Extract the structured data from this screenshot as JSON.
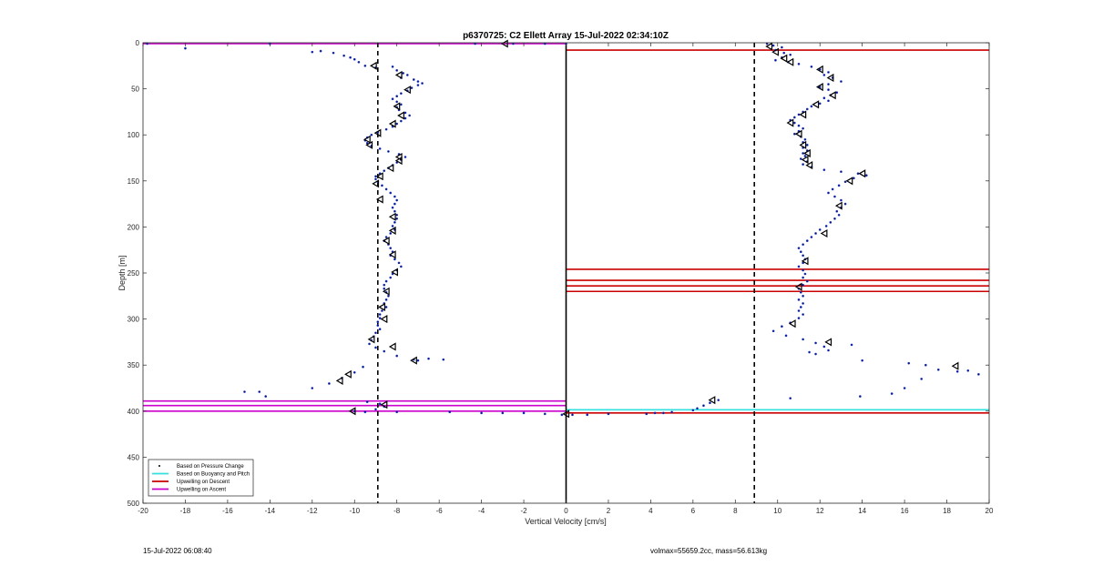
{
  "chart_data": {
    "type": "scatter",
    "title": "p6370725: C2 Ellett Array 15-Jul-2022 02:34:10Z",
    "xlabel": "Vertical Velocity [cm/s]",
    "ylabel": "Depth [m]",
    "xlim": [
      -20,
      20
    ],
    "ylim": [
      0,
      500
    ],
    "y_reversed": true,
    "x_ticks": [
      -20,
      -18,
      -16,
      -14,
      -12,
      -10,
      -8,
      -6,
      -4,
      -2,
      0,
      2,
      4,
      6,
      8,
      10,
      12,
      14,
      16,
      18,
      20
    ],
    "y_ticks": [
      0,
      50,
      100,
      150,
      200,
      250,
      300,
      350,
      400,
      450,
      500
    ],
    "grid": false,
    "legend_position": "bottom-left",
    "legend": [
      {
        "label": "Based on Pressure Change",
        "color": "#000000",
        "style": "point"
      },
      {
        "label": "Based on Buoyancy and Pitch",
        "color": "#33e0e0",
        "style": "line"
      },
      {
        "label": "Upwelling on Descent",
        "color": "#cc0000",
        "style": "line"
      },
      {
        "label": "Upwelling on Ascent",
        "color": "#cc00cc",
        "style": "line"
      }
    ],
    "reference_lines": {
      "zero_x": 0,
      "dashed_x": [
        -8.9,
        8.9
      ]
    },
    "upwelling_ascent_depths": [
      1,
      389,
      394,
      400
    ],
    "upwelling_descent_depths": [
      8,
      246,
      258,
      264,
      270,
      402
    ],
    "buoyancy_pitch_depths": [
      400
    ],
    "ascent_points": [
      [
        -19.8,
        1
      ],
      [
        -18,
        6
      ],
      [
        -14,
        1
      ],
      [
        -12,
        10
      ],
      [
        -11.6,
        9
      ],
      [
        -11,
        11
      ],
      [
        -10.5,
        14
      ],
      [
        -10.2,
        16
      ],
      [
        -10,
        18
      ],
      [
        -9.8,
        21
      ],
      [
        -9.5,
        25
      ],
      [
        -9,
        27
      ],
      [
        -8.2,
        26
      ],
      [
        -8,
        30
      ],
      [
        -7.7,
        33
      ],
      [
        -7.5,
        35
      ],
      [
        -7.8,
        38
      ],
      [
        -7.2,
        40
      ],
      [
        -7.0,
        42
      ],
      [
        -6.8,
        44
      ],
      [
        -7.0,
        46
      ],
      [
        -7.3,
        49
      ],
      [
        -7.5,
        52
      ],
      [
        -7.8,
        55
      ],
      [
        -8.0,
        58
      ],
      [
        -8.2,
        61
      ],
      [
        -8.0,
        64
      ],
      [
        -7.8,
        67
      ],
      [
        -8.0,
        70
      ],
      [
        -7.9,
        73
      ],
      [
        -7.6,
        76
      ],
      [
        -7.4,
        79
      ],
      [
        -7.6,
        82
      ],
      [
        -7.8,
        85
      ],
      [
        -8.0,
        88
      ],
      [
        -8.2,
        91
      ],
      [
        -8.5,
        94
      ],
      [
        -8.9,
        97
      ],
      [
        -9.2,
        100
      ],
      [
        -9.4,
        103
      ],
      [
        -9.5,
        106
      ],
      [
        -9.4,
        109
      ],
      [
        -9.2,
        112
      ],
      [
        -8.8,
        115
      ],
      [
        -8.4,
        118
      ],
      [
        -7.9,
        121
      ],
      [
        -7.6,
        124
      ],
      [
        -7.8,
        127
      ],
      [
        -8.0,
        130
      ],
      [
        -8.2,
        133
      ],
      [
        -8.4,
        136
      ],
      [
        -8.6,
        139
      ],
      [
        -8.8,
        142
      ],
      [
        -9.0,
        145
      ],
      [
        -9.0,
        148
      ],
      [
        -8.9,
        151
      ],
      [
        -8.7,
        155
      ],
      [
        -8.5,
        159
      ],
      [
        -8.3,
        163
      ],
      [
        -8.1,
        167
      ],
      [
        -8.0,
        171
      ],
      [
        -8.1,
        175
      ],
      [
        -8.2,
        179
      ],
      [
        -8.1,
        183
      ],
      [
        -8.0,
        187
      ],
      [
        -8.0,
        191
      ],
      [
        -8.1,
        195
      ],
      [
        -8.2,
        199
      ],
      [
        -8.1,
        203
      ],
      [
        -8.3,
        207
      ],
      [
        -8.5,
        211
      ],
      [
        -8.6,
        215
      ],
      [
        -8.4,
        219
      ],
      [
        -8.3,
        223
      ],
      [
        -8.2,
        227
      ],
      [
        -8.3,
        231
      ],
      [
        -8.1,
        235
      ],
      [
        -7.9,
        239
      ],
      [
        -7.8,
        243
      ],
      [
        -8.0,
        247
      ],
      [
        -8.2,
        251
      ],
      [
        -8.3,
        255
      ],
      [
        -8.5,
        259
      ],
      [
        -8.6,
        263
      ],
      [
        -8.6,
        267
      ],
      [
        -8.5,
        271
      ],
      [
        -8.4,
        275
      ],
      [
        -8.5,
        279
      ],
      [
        -8.6,
        283
      ],
      [
        -8.5,
        287
      ],
      [
        -8.7,
        291
      ],
      [
        -8.8,
        295
      ],
      [
        -8.8,
        299
      ],
      [
        -8.9,
        303
      ],
      [
        -8.9,
        307
      ],
      [
        -8.8,
        311
      ],
      [
        -9.0,
        315
      ],
      [
        -9.1,
        319
      ],
      [
        -9.2,
        323
      ],
      [
        -9.3,
        327
      ],
      [
        -9.0,
        331
      ],
      [
        -8.6,
        335
      ],
      [
        -8.0,
        340
      ],
      [
        -7.2,
        344
      ],
      [
        -6.5,
        343
      ],
      [
        -5.8,
        344
      ],
      [
        -7.0,
        345
      ],
      [
        -9.6,
        352
      ],
      [
        -10.0,
        358
      ],
      [
        -10.6,
        364
      ],
      [
        -11.2,
        370
      ],
      [
        -12.0,
        375
      ],
      [
        -14.5,
        379
      ],
      [
        -15.2,
        379
      ],
      [
        -14.2,
        384
      ],
      [
        -9.4,
        390
      ],
      [
        -8.8,
        392
      ],
      [
        -8.6,
        395
      ],
      [
        -9.0,
        398
      ],
      [
        -10.0,
        400
      ],
      [
        -9.5,
        401
      ],
      [
        -8.0,
        401
      ],
      [
        -5.5,
        401
      ],
      [
        -4,
        402
      ],
      [
        -3,
        402
      ],
      [
        -2,
        402
      ],
      [
        -1,
        403
      ],
      [
        -0.2,
        404
      ]
    ],
    "ascent_markers": [
      [
        -9.1,
        25
      ],
      [
        -7.9,
        35
      ],
      [
        -7.5,
        51
      ],
      [
        -8.0,
        69
      ],
      [
        -7.8,
        79
      ],
      [
        -8.2,
        88
      ],
      [
        -8.9,
        98
      ],
      [
        -9.4,
        105
      ],
      [
        -9.3,
        111
      ],
      [
        -7.9,
        124
      ],
      [
        -7.9,
        128
      ],
      [
        -8.3,
        136
      ],
      [
        -8.8,
        145
      ],
      [
        -9.0,
        153
      ],
      [
        -8.8,
        170
      ],
      [
        -8.2,
        189
      ],
      [
        -8.2,
        204
      ],
      [
        -8.5,
        215
      ],
      [
        -8.2,
        230
      ],
      [
        -8.1,
        249
      ],
      [
        -8.5,
        270
      ],
      [
        -8.7,
        287
      ],
      [
        -8.6,
        300
      ],
      [
        -9.2,
        322
      ],
      [
        -8.2,
        330
      ],
      [
        -7.2,
        345
      ],
      [
        -10.3,
        360
      ],
      [
        -10.7,
        367
      ],
      [
        -8.6,
        393
      ],
      [
        -10.1,
        400
      ],
      [
        -2.9,
        1
      ],
      [
        0,
        403
      ]
    ],
    "descent_points": [
      [
        -4.3,
        1
      ],
      [
        -2.5,
        1
      ],
      [
        -1,
        1
      ],
      [
        0,
        1
      ],
      [
        9.5,
        1
      ],
      [
        9.8,
        3
      ],
      [
        10.2,
        5
      ],
      [
        9.9,
        8
      ],
      [
        10.3,
        11
      ],
      [
        10.6,
        13
      ],
      [
        10.2,
        16
      ],
      [
        9.9,
        19
      ],
      [
        10.5,
        21
      ],
      [
        11,
        23
      ],
      [
        11.6,
        26
      ],
      [
        12.0,
        29
      ],
      [
        12.4,
        32
      ],
      [
        12.2,
        35
      ],
      [
        12.6,
        38
      ],
      [
        13.0,
        42
      ],
      [
        12.4,
        45
      ],
      [
        12.0,
        48
      ],
      [
        12.4,
        51
      ],
      [
        12.8,
        54
      ],
      [
        12.5,
        57
      ],
      [
        12.2,
        60
      ],
      [
        12.4,
        63
      ],
      [
        12.0,
        66
      ],
      [
        11.6,
        69
      ],
      [
        11.4,
        72
      ],
      [
        11.2,
        75
      ],
      [
        11.0,
        78
      ],
      [
        10.8,
        81
      ],
      [
        10.6,
        84
      ],
      [
        10.8,
        87
      ],
      [
        11.0,
        90
      ],
      [
        11.2,
        93
      ],
      [
        11.0,
        96
      ],
      [
        10.8,
        99
      ],
      [
        11.1,
        102
      ],
      [
        11.3,
        105
      ],
      [
        11.2,
        108
      ],
      [
        11.4,
        111
      ],
      [
        11.2,
        114
      ],
      [
        11.4,
        117
      ],
      [
        11.2,
        120
      ],
      [
        11.3,
        123
      ],
      [
        11.1,
        126
      ],
      [
        11.4,
        129
      ],
      [
        11.2,
        132
      ],
      [
        11.6,
        135
      ],
      [
        12.2,
        138
      ],
      [
        13.0,
        140
      ],
      [
        13.8,
        142
      ],
      [
        14.2,
        144
      ],
      [
        13.6,
        147
      ],
      [
        13.2,
        151
      ],
      [
        12.9,
        155
      ],
      [
        12.6,
        159
      ],
      [
        12.4,
        163
      ],
      [
        12.7,
        167
      ],
      [
        13.0,
        171
      ],
      [
        13.2,
        175
      ],
      [
        13.0,
        179
      ],
      [
        12.8,
        183
      ],
      [
        12.9,
        187
      ],
      [
        12.7,
        191
      ],
      [
        12.5,
        195
      ],
      [
        12.3,
        199
      ],
      [
        12.0,
        203
      ],
      [
        11.8,
        207
      ],
      [
        11.6,
        211
      ],
      [
        11.4,
        215
      ],
      [
        11.2,
        219
      ],
      [
        11.0,
        223
      ],
      [
        11.1,
        227
      ],
      [
        11.2,
        231
      ],
      [
        11.3,
        235
      ],
      [
        11.2,
        239
      ],
      [
        11.0,
        243
      ],
      [
        11.2,
        247
      ],
      [
        11.3,
        251
      ],
      [
        11.2,
        255
      ],
      [
        11.4,
        259
      ],
      [
        11.2,
        263
      ],
      [
        11.0,
        267
      ],
      [
        11.1,
        271
      ],
      [
        11.2,
        275
      ],
      [
        11.0,
        279
      ],
      [
        11.2,
        283
      ],
      [
        11.1,
        287
      ],
      [
        11.0,
        291
      ],
      [
        11.2,
        295
      ],
      [
        11.0,
        299
      ],
      [
        10.6,
        304
      ],
      [
        10.2,
        308
      ],
      [
        9.8,
        313
      ],
      [
        10.4,
        318
      ],
      [
        11.2,
        322
      ],
      [
        11.8,
        326
      ],
      [
        12.2,
        330
      ],
      [
        12.4,
        334
      ],
      [
        11.8,
        338
      ],
      [
        11.5,
        336
      ],
      [
        13.5,
        328
      ],
      [
        14.0,
        345
      ],
      [
        16.2,
        348
      ],
      [
        17.0,
        350
      ],
      [
        17.6,
        355
      ],
      [
        18.5,
        357
      ],
      [
        19.0,
        356
      ],
      [
        19.5,
        360
      ],
      [
        16.8,
        365
      ],
      [
        16.0,
        375
      ],
      [
        15.4,
        381
      ],
      [
        13.9,
        384
      ],
      [
        10.6,
        386
      ],
      [
        7.2,
        388
      ],
      [
        6.8,
        391
      ],
      [
        6.5,
        394
      ],
      [
        6.2,
        397
      ],
      [
        6.0,
        399
      ],
      [
        5,
        401
      ],
      [
        4.6,
        402
      ],
      [
        4.2,
        402
      ],
      [
        3.8,
        403
      ],
      [
        2.0,
        403
      ],
      [
        1.0,
        404
      ],
      [
        0.3,
        404
      ]
    ],
    "descent_markers": [
      [
        9.6,
        4
      ],
      [
        9.9,
        10
      ],
      [
        10.3,
        17
      ],
      [
        10.6,
        21
      ],
      [
        12.0,
        29
      ],
      [
        12.5,
        38
      ],
      [
        12.0,
        48
      ],
      [
        12.6,
        57
      ],
      [
        11.8,
        67
      ],
      [
        11.2,
        78
      ],
      [
        10.6,
        87
      ],
      [
        11.0,
        99
      ],
      [
        11.2,
        111
      ],
      [
        11.4,
        120
      ],
      [
        11.3,
        127
      ],
      [
        11.5,
        133
      ],
      [
        14.0,
        142
      ],
      [
        13.4,
        150
      ],
      [
        12.9,
        177
      ],
      [
        12.2,
        207
      ],
      [
        11.3,
        237
      ],
      [
        11.0,
        265
      ],
      [
        10.7,
        305
      ],
      [
        12.4,
        325
      ],
      [
        18.4,
        351
      ],
      [
        6.9,
        388
      ]
    ]
  },
  "footer": {
    "timestamp": "15-Jul-2022 06:08:40",
    "mass_info": "volmax=55659.2cc, mass=56.613kg"
  }
}
